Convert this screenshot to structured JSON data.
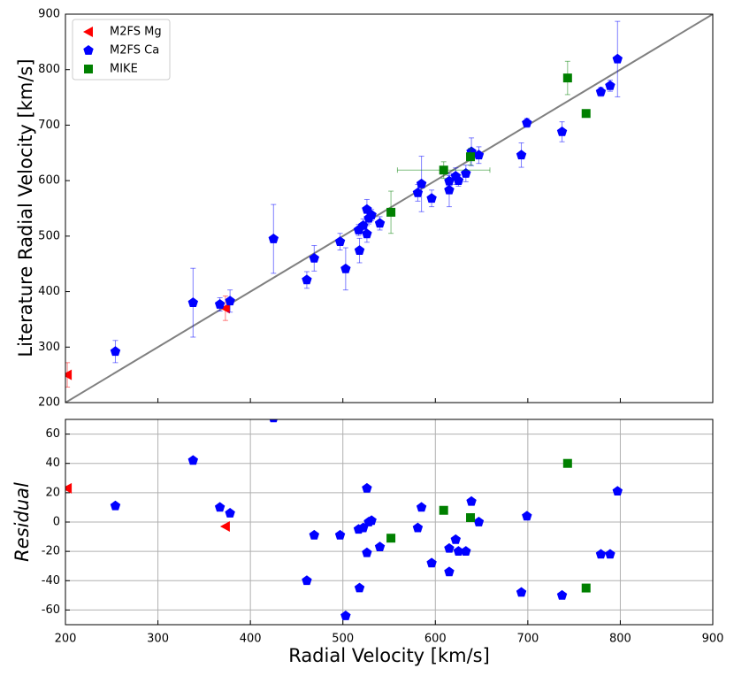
{
  "chart_data": [
    {
      "type": "scatter",
      "ylabel": "Literature Radial Velocity [km/s]",
      "xlim": [
        200,
        900
      ],
      "ylim": [
        200,
        900
      ],
      "xticks": [
        200,
        300,
        400,
        500,
        600,
        700,
        800,
        900
      ],
      "yticks": [
        200,
        300,
        400,
        500,
        600,
        700,
        800,
        900
      ],
      "grid": false,
      "legend": "upper left",
      "series": [
        {
          "name": "M2FS Mg",
          "color": "#ff0000",
          "marker": "triangle-left",
          "x": [
            202,
            373
          ],
          "values": [
            250,
            370
          ],
          "errors": [
            22,
            22
          ]
        },
        {
          "name": "M2FS Ca",
          "color": "#0000ff",
          "marker": "pentagon",
          "x": [
            254,
            338,
            367,
            378,
            425,
            461,
            469,
            497,
            503,
            517,
            518,
            522,
            526,
            526,
            528,
            531,
            540,
            581,
            585,
            596,
            615,
            615,
            622,
            625,
            633,
            639,
            647,
            693,
            699,
            737,
            779,
            789,
            797
          ],
          "values": [
            292,
            380,
            377,
            383,
            495,
            421,
            460,
            490,
            441,
            511,
            474,
            519,
            548,
            504,
            532,
            538,
            523,
            578,
            594,
            568,
            599,
            583,
            608,
            600,
            613,
            652,
            646,
            646,
            704,
            688,
            760,
            771,
            819
          ],
          "errors": [
            20,
            62,
            12,
            20,
            62,
            15,
            23,
            15,
            38,
            10,
            22,
            12,
            18,
            15,
            10,
            10,
            12,
            15,
            50,
            15,
            10,
            30,
            15,
            10,
            15,
            25,
            15,
            22,
            8,
            18,
            8,
            10,
            68
          ]
        },
        {
          "name": "MIKE",
          "color": "#008000",
          "marker": "square",
          "x": [
            552,
            609,
            638,
            743,
            763
          ],
          "values": [
            543,
            619,
            643,
            785,
            721
          ],
          "errors": [
            38,
            15,
            15,
            30,
            5
          ],
          "xerrors": [
            null,
            50,
            null,
            null,
            null
          ]
        }
      ]
    },
    {
      "type": "scatter",
      "xlabel": "Radial Velocity [km/s]",
      "ylabel": "Residual",
      "xlim": [
        200,
        900
      ],
      "ylim": [
        -70,
        70
      ],
      "xticks": [
        200,
        300,
        400,
        500,
        600,
        700,
        800,
        900
      ],
      "yticks": [
        -60,
        -40,
        -20,
        0,
        20,
        40,
        60
      ],
      "grid": true,
      "series": [
        {
          "name": "M2FS Mg",
          "color": "#ff0000",
          "marker": "triangle-left",
          "x": [
            202,
            373
          ],
          "values": [
            23,
            -3
          ]
        },
        {
          "name": "M2FS Ca",
          "color": "#0000ff",
          "marker": "pentagon",
          "x": [
            254,
            338,
            367,
            378,
            425,
            461,
            469,
            497,
            503,
            517,
            518,
            522,
            526,
            526,
            528,
            531,
            540,
            581,
            585,
            596,
            615,
            615,
            622,
            625,
            633,
            639,
            647,
            693,
            699,
            737,
            779,
            789,
            797
          ],
          "values": [
            11,
            42,
            10,
            6,
            71,
            -40,
            -9,
            -9,
            -64,
            -5,
            -45,
            -4,
            23,
            -21,
            0,
            1,
            -17,
            -4,
            10,
            -28,
            -18,
            -34,
            -12,
            -20,
            -20,
            14,
            0,
            -48,
            4,
            -50,
            -22,
            -22,
            21
          ]
        },
        {
          "name": "MIKE",
          "color": "#008000",
          "marker": "square",
          "x": [
            552,
            609,
            638,
            743,
            763
          ],
          "values": [
            -11,
            8,
            3,
            40,
            -45
          ]
        }
      ]
    }
  ]
}
